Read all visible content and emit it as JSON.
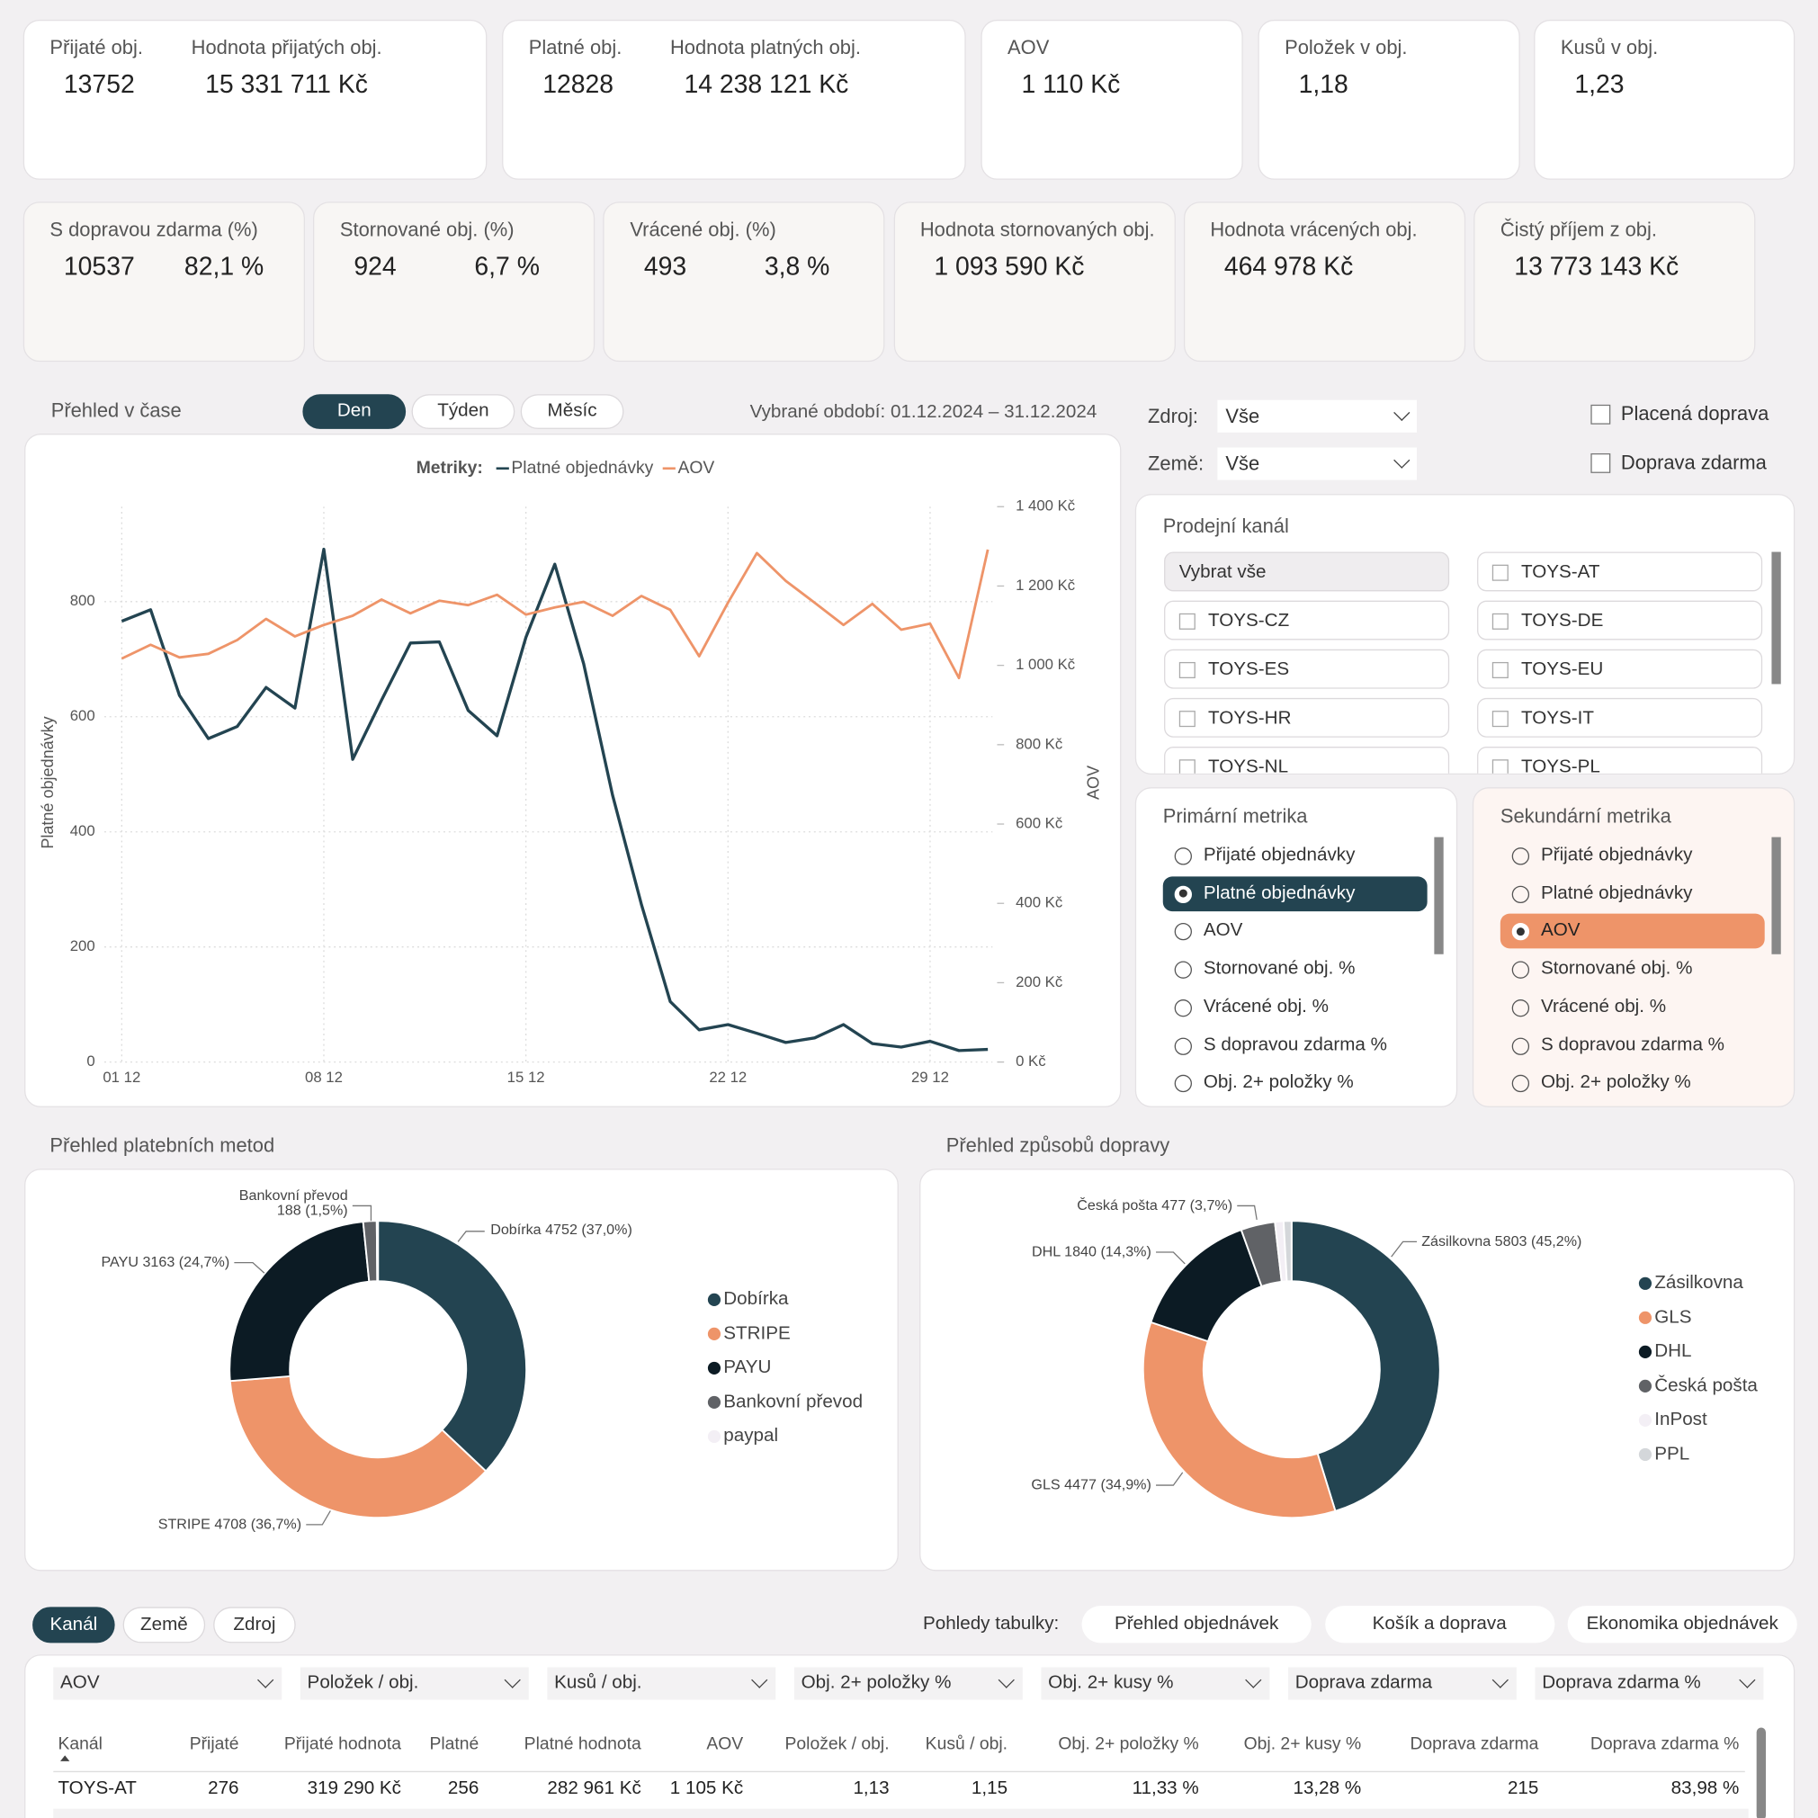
{
  "kpis_top": [
    {
      "items": [
        {
          "label": "Přijaté obj.",
          "value": "13752"
        },
        {
          "label": "Hodnota přijatých obj.",
          "value": "15 331 711 Kč"
        }
      ]
    },
    {
      "items": [
        {
          "label": "Platné obj.",
          "value": "12828"
        },
        {
          "label": "Hodnota platných obj.",
          "value": "14 238 121 Kč"
        }
      ]
    },
    {
      "items": [
        {
          "label": "AOV",
          "value": "1 110 Kč"
        }
      ]
    },
    {
      "items": [
        {
          "label": "Položek v obj.",
          "value": "1,18"
        }
      ]
    },
    {
      "items": [
        {
          "label": "Kusů v obj.",
          "value": "1,23"
        }
      ]
    }
  ],
  "kpis_bottom": [
    {
      "label": "S dopravou zdarma (%)",
      "values": [
        "10537",
        "82,1 %"
      ]
    },
    {
      "label": "Stornované obj. (%)",
      "values": [
        "924",
        "6,7 %"
      ]
    },
    {
      "label": "Vrácené obj. (%)",
      "values": [
        "493",
        "3,8 %"
      ]
    },
    {
      "label": "Hodnota stornovaných obj.",
      "values": [
        "1 093 590 Kč"
      ]
    },
    {
      "label": "Hodnota vrácených obj.",
      "values": [
        "464 978 Kč"
      ]
    },
    {
      "label": "Čistý příjem z obj.",
      "values": [
        "13 773 143 Kč"
      ]
    }
  ],
  "time_overview": {
    "periods": [
      "Den",
      "Týden",
      "Měsíc"
    ],
    "selected_period": 0,
    "selected_range": "Vybrané období: 01.12.2024 – 31.12.2024"
  },
  "filters": {
    "selects": [
      {
        "label": "Zdroj:",
        "value": "Vše"
      },
      {
        "label": "Země:",
        "value": "Vše"
      }
    ],
    "checkboxes": [
      "Placená doprava",
      "Doprava zdarma"
    ]
  },
  "sales_channel": {
    "title": "Prodejní kanál",
    "select_all": "Vybrat vše",
    "options": [
      "TOYS-AT",
      "TOYS-CZ",
      "TOYS-DE",
      "TOYS-ES",
      "TOYS-EU",
      "TOYS-HR",
      "TOYS-IT",
      "TOYS-NL",
      "TOYS-PL"
    ]
  },
  "primary_metric": {
    "title": "Primární metrika",
    "selected": 1,
    "options": [
      "Přijaté objednávky",
      "Platné objednávky",
      "AOV",
      "Stornované obj. %",
      "Vrácené obj. %",
      "S dopravou zdarma %",
      "Obj. 2+ položky %"
    ]
  },
  "secondary_metric": {
    "title": "Sekundární metrika",
    "selected": 2,
    "options": [
      "Přijaté objednávky",
      "Platné objednávky",
      "AOV",
      "Stornované obj. %",
      "Vrácené obj. %",
      "S dopravou zdarma %",
      "Obj. 2+ položky %"
    ]
  },
  "table": {
    "tabs": [
      "Kanál",
      "Země",
      "Zdroj"
    ],
    "selected_tab": 0,
    "views_label": "Pohledy tabulky:",
    "views": [
      "Přehled objednávek",
      "Košík a doprava",
      "Ekonomika objednávek"
    ],
    "column_selects": [
      "AOV",
      "Položek / obj.",
      "Kusů / obj.",
      "Obj. 2+ položky %",
      "Obj. 2+ kusy %",
      "Doprava zdarma",
      "Doprava zdarma %"
    ],
    "columns": [
      "Kanál",
      "Přijaté",
      "Přijaté hodnota",
      "Platné",
      "Platné hodnota",
      "AOV",
      "Položek / obj.",
      "Kusů / obj.",
      "Obj. 2+ položky %",
      "Obj. 2+ kusy %",
      "Doprava zdarma",
      "Doprava zdarma %"
    ],
    "rows": [
      [
        "TOYS-AT",
        "276",
        "319 290 Kč",
        "256",
        "282 961 Kč",
        "1 105 Kč",
        "1,13",
        "1,15",
        "11,33 %",
        "13,28 %",
        "215",
        "83,98 %"
      ]
    ]
  },
  "chart_data": [
    {
      "type": "line",
      "title": "Přehled v čase",
      "legend_title": "Metriky:",
      "categories": [
        "01 12",
        null,
        null,
        null,
        null,
        null,
        null,
        "08 12",
        null,
        null,
        null,
        null,
        null,
        null,
        "15 12",
        null,
        null,
        null,
        null,
        null,
        null,
        "22 12",
        null,
        null,
        null,
        null,
        null,
        null,
        "29 12",
        null,
        null
      ],
      "series": [
        {
          "name": "Platné objednávky",
          "color": "#234451",
          "values": [
            766,
            786,
            637,
            562,
            583,
            651,
            615,
            891,
            526,
            629,
            728,
            730,
            611,
            567,
            738,
            865,
            692,
            464,
            274,
            105,
            56,
            65,
            50,
            34,
            42,
            65,
            32,
            26,
            36,
            20,
            22
          ]
        },
        {
          "name": "AOV",
          "color": "#ee9469",
          "axis": "y2",
          "values": [
            1017,
            1052,
            1020,
            1029,
            1064,
            1117,
            1073,
            1102,
            1125,
            1166,
            1131,
            1163,
            1152,
            1178,
            1128,
            1146,
            1160,
            1125,
            1175,
            1140,
            1023,
            1158,
            1283,
            1213,
            1158,
            1102,
            1155,
            1090,
            1105,
            968,
            1292
          ]
        }
      ],
      "ylabel": "Platné objednávky",
      "y2label": "AOV",
      "ylim": [
        0,
        965
      ],
      "yticks": [
        0,
        200,
        400,
        600,
        800
      ],
      "y2lim": [
        0,
        1400
      ],
      "y2ticks": [
        {
          "value": 0,
          "label": "0 Kč"
        },
        {
          "value": 200,
          "label": "200 Kč"
        },
        {
          "value": 400,
          "label": "400 Kč"
        },
        {
          "value": 600,
          "label": "600 Kč"
        },
        {
          "value": 800,
          "label": "800 Kč"
        },
        {
          "value": 1000,
          "label": "1 000 Kč"
        },
        {
          "value": 1200,
          "label": "1 200 Kč"
        },
        {
          "value": 1400,
          "label": "1 400 Kč"
        }
      ],
      "grid": true
    },
    {
      "type": "donut",
      "title": "Přehled platebních metod",
      "categories": [
        "Dobírka",
        "STRIPE",
        "PAYU",
        "Bankovní převod",
        "paypal"
      ],
      "values": [
        4752,
        4708,
        3163,
        188,
        17
      ],
      "value_labels": [
        "Dobírka 4752 (37,0%)",
        "STRIPE 4708 (36,7%)",
        "PAYU 3163 (24,7%)",
        "Bankovní převod\n188 (1,5%)",
        null
      ],
      "colors": [
        "#234451",
        "#ee9469",
        "#0c1b24",
        "#606266",
        "#f3eff5"
      ]
    },
    {
      "type": "donut",
      "title": "Přehled způsobů dopravy",
      "categories": [
        "Zásilkovna",
        "GLS",
        "DHL",
        "Česká pošta",
        "InPost",
        "PPL"
      ],
      "values": [
        5803,
        4477,
        1840,
        477,
        120,
        111
      ],
      "value_labels": [
        "Zásilkovna 5803 (45,2%)",
        "GLS 4477 (34,9%)",
        "DHL 1840 (14,3%)",
        "Česká pošta 477 (3,7%)",
        null,
        null
      ],
      "colors": [
        "#234451",
        "#ee9469",
        "#0c1b24",
        "#606266",
        "#f3eff5",
        "#d4d7da"
      ]
    }
  ]
}
